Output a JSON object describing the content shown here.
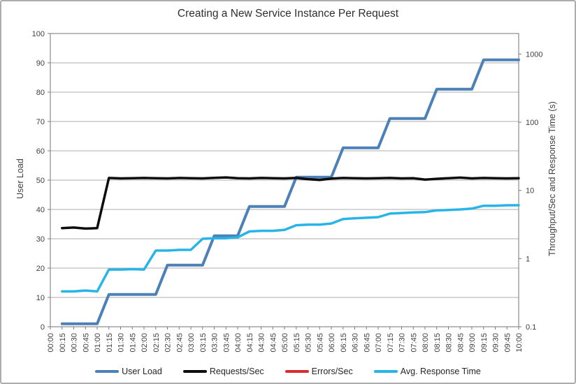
{
  "title": "Creating a New Service Instance Per Request",
  "chart_data": {
    "type": "line",
    "title": "Creating a New Service Instance Per Request",
    "grid": "horizontal",
    "legend_position": "bottom",
    "x_axis_labels": [
      "00:00",
      "00:15",
      "00:30",
      "00:45",
      "01:00",
      "01:15",
      "01:30",
      "01:45",
      "02:00",
      "02:15",
      "02:30",
      "02:45",
      "03:00",
      "03:15",
      "03:30",
      "03:45",
      "04:00",
      "04:15",
      "04:30",
      "04:45",
      "05:00",
      "05:15",
      "05:30",
      "05:45",
      "06:00",
      "06:15",
      "06:30",
      "06:45",
      "07:00",
      "07:15",
      "07:30",
      "07:45",
      "08:00",
      "08:15",
      "08:30",
      "08:45",
      "09:00",
      "09:15",
      "09:30",
      "09:45",
      "10:00"
    ],
    "x_times": [
      "00:15",
      "00:30",
      "00:45",
      "01:00",
      "01:15",
      "01:30",
      "01:45",
      "02:00",
      "02:15",
      "02:30",
      "02:45",
      "03:00",
      "03:15",
      "03:30",
      "03:45",
      "04:00",
      "04:15",
      "04:30",
      "04:45",
      "05:00",
      "05:15",
      "05:30",
      "05:45",
      "06:00",
      "06:15",
      "06:30",
      "06:45",
      "07:00",
      "07:15",
      "07:30",
      "07:45",
      "08:00",
      "08:15",
      "08:30",
      "08:45",
      "09:00",
      "09:15",
      "09:30",
      "09:45",
      "10:00"
    ],
    "left_axis": {
      "label": "User Load",
      "scale": "linear",
      "min": 0,
      "max": 100,
      "ticks": [
        0,
        10,
        20,
        30,
        40,
        50,
        60,
        70,
        80,
        90,
        100
      ]
    },
    "right_axis": {
      "label": "Throughput/Sec and Response Time (s)",
      "scale": "log",
      "min": 0.1,
      "max": 2000,
      "ticks": [
        0.1,
        1,
        10,
        100,
        1000
      ]
    },
    "series": [
      {
        "name": "User Load",
        "color": "#4e80b8",
        "width": 4,
        "axis": "left",
        "values": [
          1,
          1,
          1,
          1,
          11,
          11,
          11,
          11,
          11,
          21,
          21,
          21,
          21,
          31,
          31,
          31,
          41,
          41,
          41,
          41,
          51,
          51,
          51,
          51,
          61,
          61,
          61,
          61,
          71,
          71,
          71,
          71,
          81,
          81,
          81,
          81,
          91,
          91,
          91,
          91
        ]
      },
      {
        "name": "Requests/Sec",
        "color": "#0d0d0d",
        "width": 3.5,
        "axis": "right",
        "values": [
          2.8,
          2.85,
          2.75,
          2.8,
          15.2,
          15.0,
          15.1,
          15.2,
          15.1,
          15.0,
          15.2,
          15.1,
          15.0,
          15.3,
          15.5,
          15.1,
          15.0,
          15.2,
          15.1,
          15.0,
          15.2,
          14.6,
          14.2,
          14.9,
          15.2,
          15.1,
          15.0,
          15.1,
          15.2,
          15.0,
          15.1,
          14.4,
          14.8,
          15.1,
          15.4,
          15.0,
          15.2,
          15.1,
          15.0,
          15.1
        ]
      },
      {
        "name": "Errors/Sec",
        "color": "#d92b2b",
        "width": 3.5,
        "axis": "right",
        "values": []
      },
      {
        "name": "Avg. Response Time",
        "color": "#29b4e8",
        "width": 3.5,
        "axis": "right",
        "values": [
          0.33,
          0.33,
          0.34,
          0.33,
          0.69,
          0.69,
          0.7,
          0.69,
          1.31,
          1.31,
          1.34,
          1.34,
          1.95,
          1.99,
          1.99,
          2.05,
          2.5,
          2.55,
          2.55,
          2.63,
          3.08,
          3.14,
          3.14,
          3.27,
          3.8,
          3.9,
          3.97,
          4.05,
          4.57,
          4.66,
          4.75,
          4.8,
          5.1,
          5.15,
          5.25,
          5.4,
          5.95,
          5.95,
          6.05,
          6.05
        ]
      }
    ],
    "colors": {
      "gridline": "#acacac",
      "plot_border": "#8a8a8a",
      "tick": "#7a7a7a",
      "tick_text": "#3f3f3f"
    }
  }
}
